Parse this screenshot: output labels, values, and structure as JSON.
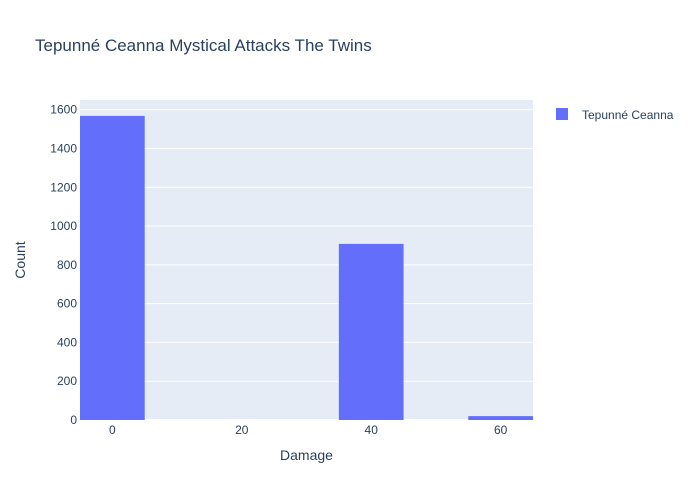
{
  "chart_data": {
    "type": "bar",
    "title": "Tepunné Ceanna Mystical Attacks The Twins",
    "xlabel": "Damage",
    "ylabel": "Count",
    "bin_width": 10,
    "xlim": [
      -5,
      65
    ],
    "ylim": [
      0,
      1650
    ],
    "x_ticks": [
      0,
      20,
      40,
      60
    ],
    "y_ticks": [
      0,
      200,
      400,
      600,
      800,
      1000,
      1200,
      1400,
      1600
    ],
    "grid": true,
    "legend_position": "top-right",
    "series": [
      {
        "name": "Tepunné Ceanna",
        "color": "#636efa",
        "bins": [
          {
            "x": 0,
            "value": 1568
          },
          {
            "x": 10,
            "value": 0
          },
          {
            "x": 20,
            "value": 0
          },
          {
            "x": 30,
            "value": 0
          },
          {
            "x": 40,
            "value": 908
          },
          {
            "x": 50,
            "value": 0
          },
          {
            "x": 60,
            "value": 20
          }
        ]
      }
    ]
  },
  "colors": {
    "plot_background": "#e5ecf6",
    "grid": "#ffffff",
    "text": "#2a3f5f"
  }
}
